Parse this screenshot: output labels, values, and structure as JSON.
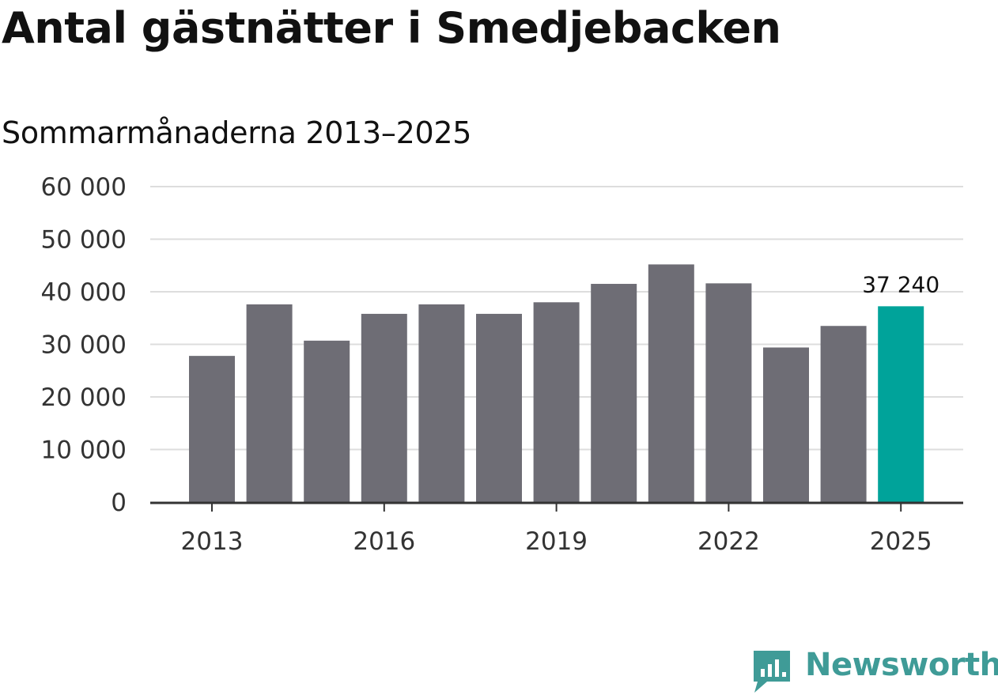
{
  "header": {
    "title": "Antal gästnätter i Smedjebacken",
    "subtitle": "Sommarmånaderna 2013–2025"
  },
  "brand": {
    "name": "Newsworthy",
    "color": "#3f9b97"
  },
  "chart_data": {
    "type": "bar",
    "categories": [
      "2013",
      "2014",
      "2015",
      "2016",
      "2017",
      "2018",
      "2019",
      "2020",
      "2021",
      "2022",
      "2023",
      "2024",
      "2025"
    ],
    "values": [
      27800,
      37600,
      30700,
      35800,
      37600,
      35800,
      38000,
      41500,
      45200,
      41600,
      29400,
      33500,
      37240
    ],
    "x_tick_labels": [
      "2013",
      "2016",
      "2019",
      "2022",
      "2025"
    ],
    "y_ticks": [
      0,
      10000,
      20000,
      30000,
      40000,
      50000,
      60000
    ],
    "y_tick_labels": [
      "0",
      "10 000",
      "20 000",
      "30 000",
      "40 000",
      "50 000",
      "60 000"
    ],
    "ylim": [
      0,
      60000
    ],
    "annotation": {
      "category": "2025",
      "text": "37 240"
    },
    "highlight_category": "2025",
    "colors": {
      "bar": "#6e6d75",
      "highlight": "#00a39a",
      "grid": "#dddddd",
      "axis": "#333333"
    },
    "grid": true
  }
}
